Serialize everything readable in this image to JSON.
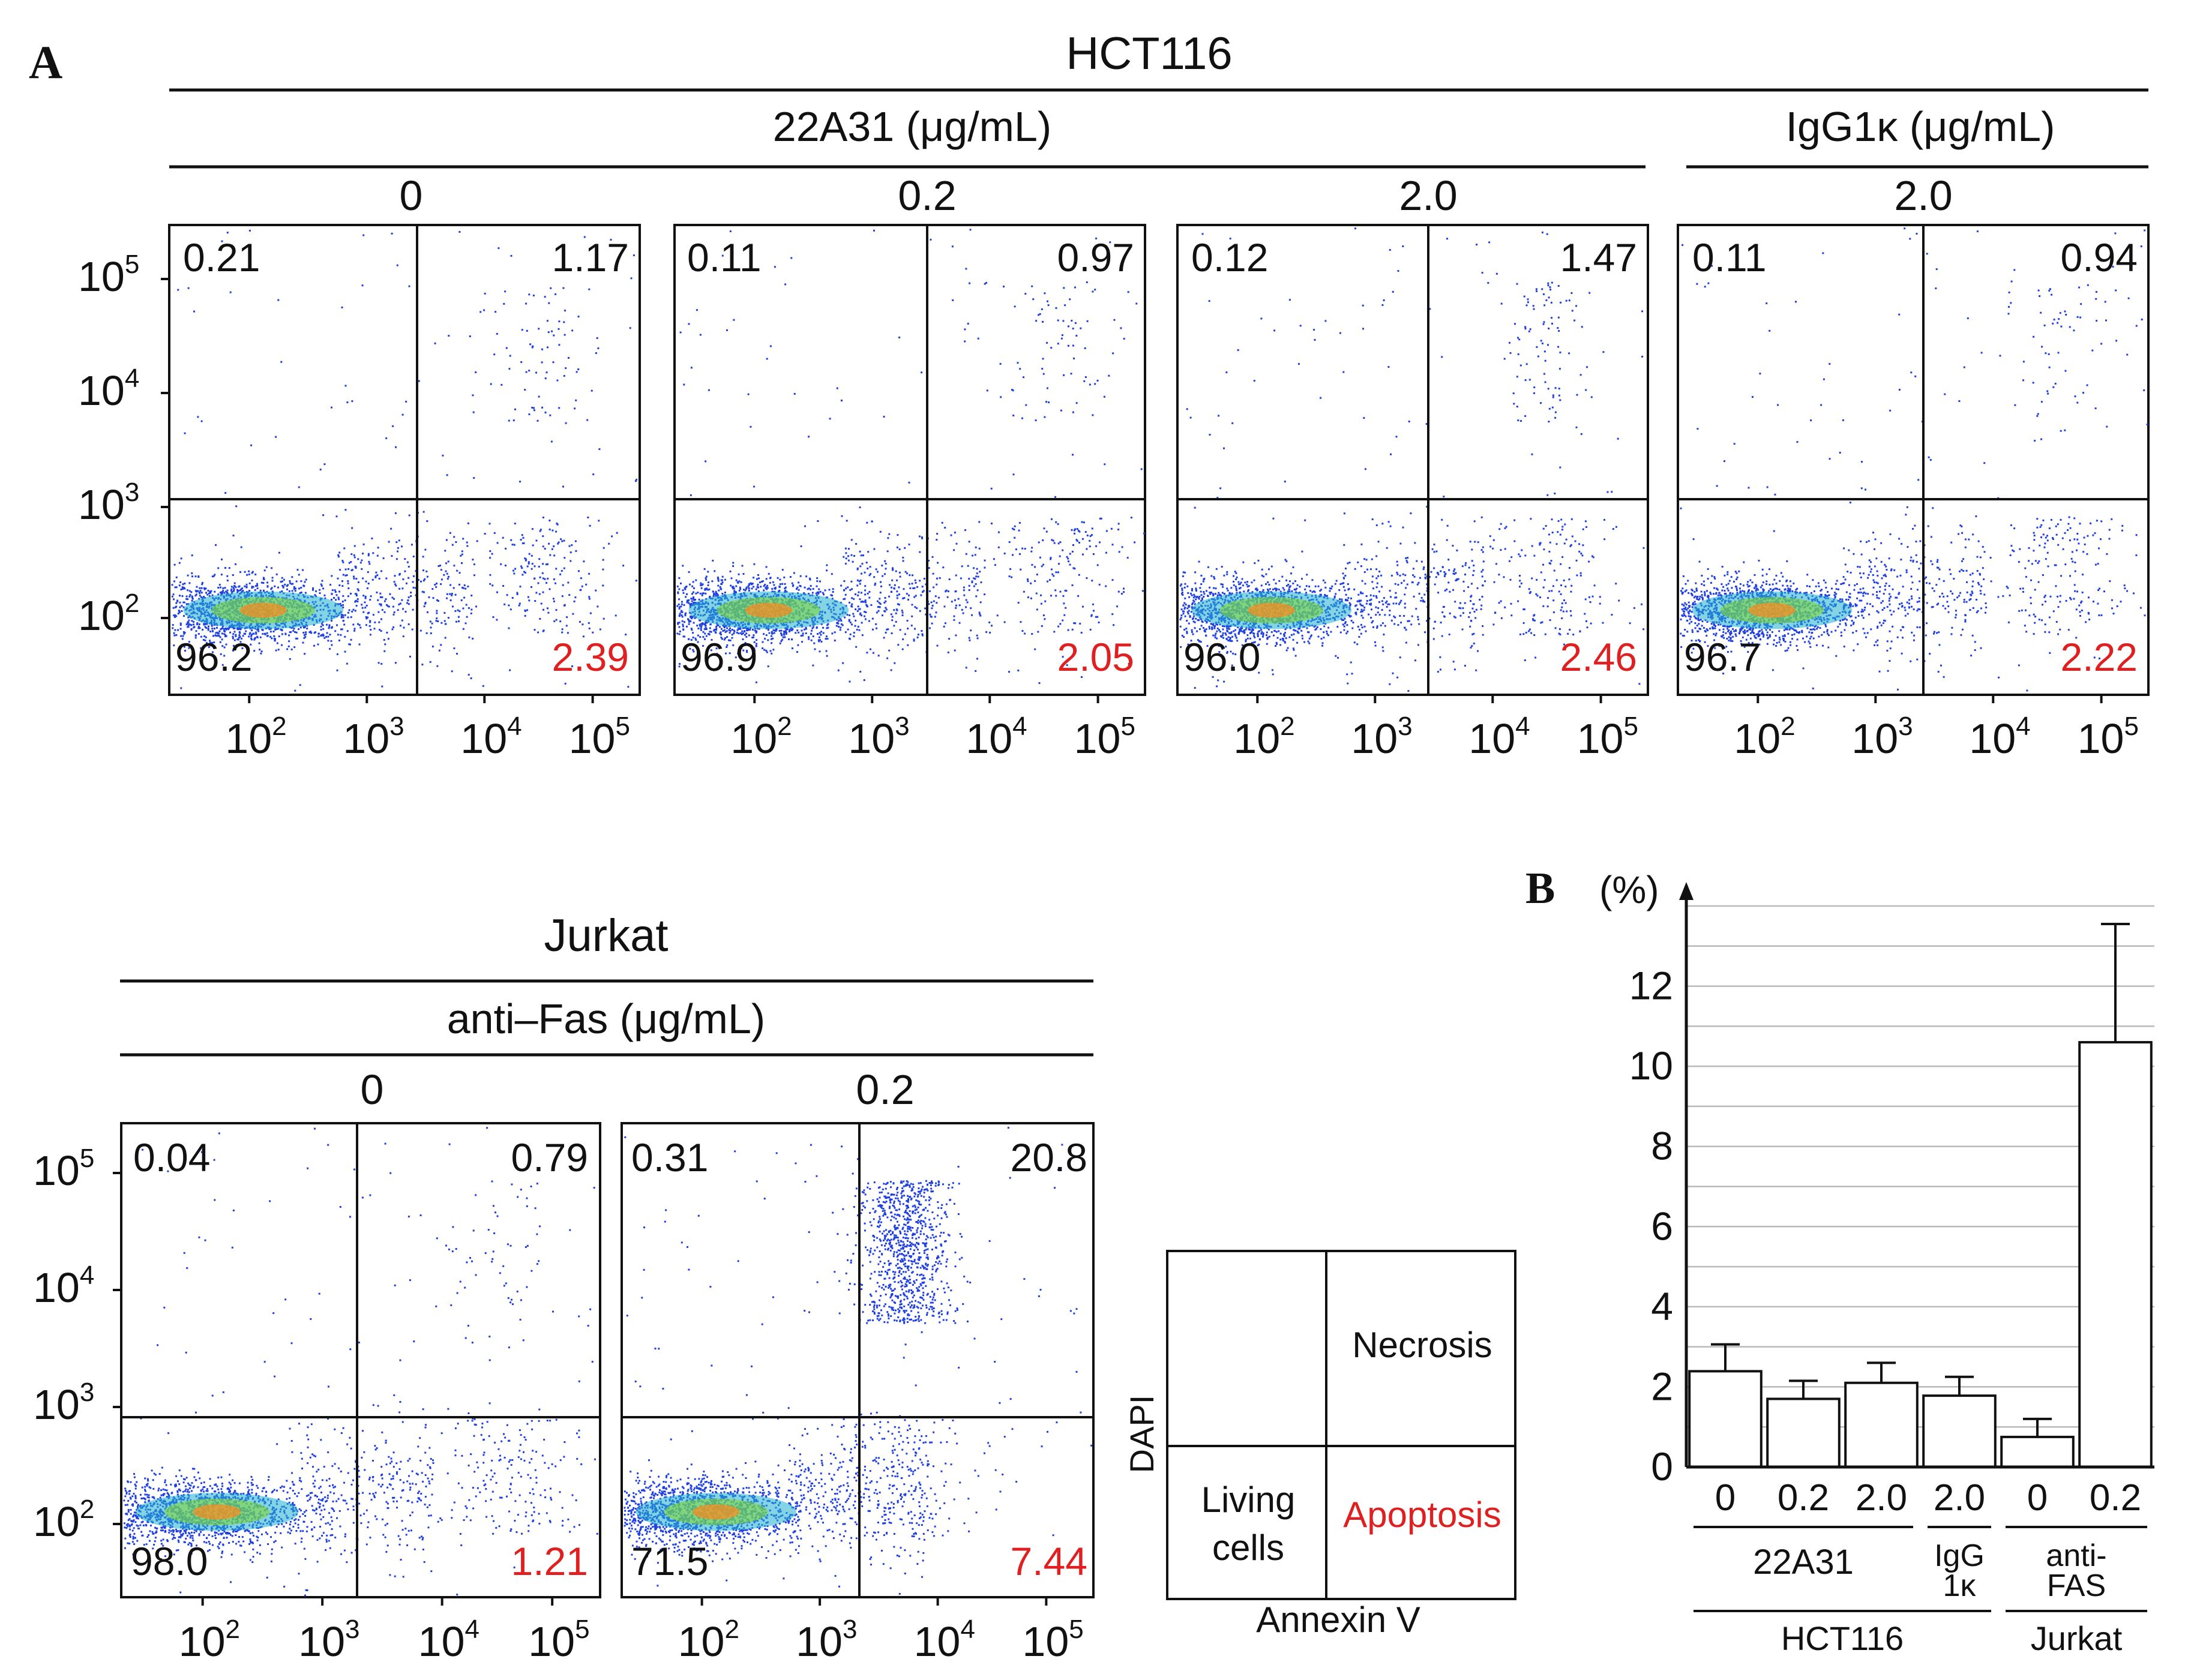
{
  "panel_labels": {
    "a": "A",
    "b": "B"
  },
  "colors": {
    "dots": "#1f3fe0",
    "apoptosis": "#e02020",
    "axis": "#111111",
    "grid": "#b9b9b9"
  },
  "flow_a": {
    "title": "HCT116",
    "group1_label": "22A31 (μg/mL)",
    "group2_label": "IgG1κ (μg/mL)",
    "y_ticks": [
      "10",
      "10",
      "10",
      "10"
    ],
    "y_tick_exponents": [
      "5",
      "4",
      "3",
      "2"
    ],
    "x_ticks": [
      "10",
      "10",
      "10",
      "10"
    ],
    "x_tick_exponents": [
      "2",
      "3",
      "4",
      "5"
    ],
    "plots": [
      {
        "dose": "0",
        "quadrants": {
          "ul": "0.21",
          "ur": "1.17",
          "ll": "96.2",
          "lr": "2.39"
        }
      },
      {
        "dose": "0.2",
        "quadrants": {
          "ul": "0.11",
          "ur": "0.97",
          "ll": "96.9",
          "lr": "2.05"
        }
      },
      {
        "dose": "2.0",
        "quadrants": {
          "ul": "0.12",
          "ur": "1.47",
          "ll": "96.0",
          "lr": "2.46"
        }
      },
      {
        "dose": "2.0",
        "quadrants": {
          "ul": "0.11",
          "ur": "0.94",
          "ll": "96.7",
          "lr": "2.22"
        }
      }
    ]
  },
  "flow_jurkat": {
    "title": "Jurkat",
    "group_label": "anti–Fas (μg/mL)",
    "plots": [
      {
        "dose": "0",
        "quadrants": {
          "ul": "0.04",
          "ur": "0.79",
          "ll": "98.0",
          "lr": "1.21"
        }
      },
      {
        "dose": "0.2",
        "quadrants": {
          "ul": "0.31",
          "ur": "20.8",
          "ll": "71.5",
          "lr": "7.44"
        }
      }
    ]
  },
  "legend": {
    "y_axis": "DAPI",
    "x_axis": "Annexin V",
    "necrosis": "Necrosis",
    "living_line1": "Living",
    "living_line2": "cells",
    "apoptosis": "Apoptosis"
  },
  "chart_data": {
    "type": "bar",
    "ylabel": "(%)",
    "ylim": [
      0,
      14
    ],
    "yticks": [
      0,
      2,
      4,
      6,
      8,
      10,
      12
    ],
    "grid": true,
    "categories": [
      "0",
      "0.2",
      "2.0",
      "2.0",
      "0",
      "0.2"
    ],
    "values": [
      2.39,
      1.7,
      2.1,
      1.78,
      0.75,
      10.6
    ],
    "errors": [
      0.67,
      0.45,
      0.5,
      0.47,
      0.45,
      2.95
    ],
    "group_labels": [
      {
        "text": "22A31",
        "from": 0,
        "to": 2
      },
      {
        "text_line1": "IgG",
        "text_line2": "1κ",
        "from": 3,
        "to": 3
      },
      {
        "text_line1": "anti-",
        "text_line2": "FAS",
        "from": 4,
        "to": 5
      }
    ],
    "cell_labels": [
      {
        "text": "HCT116",
        "from": 0,
        "to": 3
      },
      {
        "text": "Jurkat",
        "from": 4,
        "to": 5
      }
    ]
  }
}
